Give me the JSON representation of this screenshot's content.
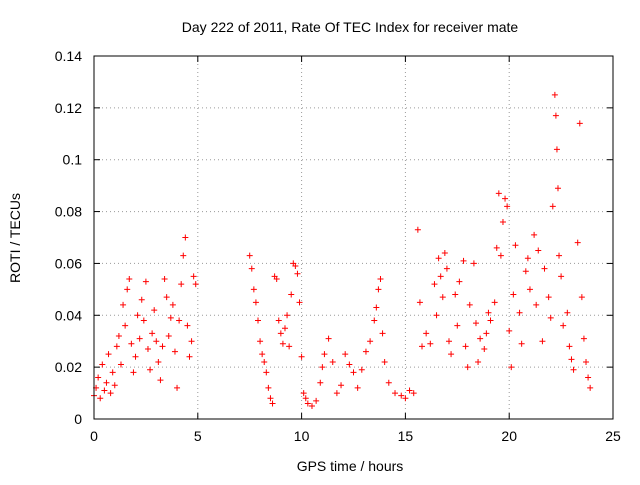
{
  "chart_data": {
    "type": "scatter",
    "title": "Day 222 of 2011, Rate Of TEC Index for receiver mate",
    "xlabel": "GPS time / hours",
    "ylabel": "ROTI / TECUs",
    "xlim": [
      0,
      25
    ],
    "ylim": [
      0,
      0.14
    ],
    "x_ticks": [
      "0",
      "5",
      "10",
      "15",
      "20",
      "25"
    ],
    "y_ticks": [
      "0",
      "0.02",
      "0.04",
      "0.06",
      "0.08",
      "0.1",
      "0.12",
      "0.14"
    ],
    "grid": true,
    "marker": "+",
    "color": "#ff0000",
    "series": [
      {
        "points": [
          [
            0.0,
            0.009
          ],
          [
            0.1,
            0.012
          ],
          [
            0.2,
            0.016
          ],
          [
            0.3,
            0.008
          ],
          [
            0.4,
            0.021
          ],
          [
            0.5,
            0.011
          ],
          [
            0.6,
            0.014
          ],
          [
            0.7,
            0.025
          ],
          [
            0.8,
            0.01
          ],
          [
            0.9,
            0.018
          ],
          [
            1.0,
            0.013
          ],
          [
            1.1,
            0.028
          ],
          [
            1.2,
            0.032
          ],
          [
            1.3,
            0.021
          ],
          [
            1.4,
            0.044
          ],
          [
            1.5,
            0.036
          ],
          [
            1.6,
            0.05
          ],
          [
            1.7,
            0.054
          ],
          [
            1.8,
            0.029
          ],
          [
            1.9,
            0.018
          ],
          [
            2.0,
            0.024
          ],
          [
            2.1,
            0.04
          ],
          [
            2.2,
            0.031
          ],
          [
            2.3,
            0.046
          ],
          [
            2.4,
            0.038
          ],
          [
            2.5,
            0.053
          ],
          [
            2.6,
            0.027
          ],
          [
            2.7,
            0.019
          ],
          [
            2.8,
            0.033
          ],
          [
            2.9,
            0.042
          ],
          [
            3.0,
            0.03
          ],
          [
            3.1,
            0.022
          ],
          [
            3.2,
            0.015
          ],
          [
            3.3,
            0.028
          ],
          [
            3.4,
            0.054
          ],
          [
            3.5,
            0.047
          ],
          [
            3.6,
            0.032
          ],
          [
            3.7,
            0.039
          ],
          [
            3.8,
            0.044
          ],
          [
            3.9,
            0.026
          ],
          [
            4.0,
            0.012
          ],
          [
            4.1,
            0.038
          ],
          [
            4.2,
            0.052
          ],
          [
            4.3,
            0.063
          ],
          [
            4.4,
            0.07
          ],
          [
            4.5,
            0.036
          ],
          [
            4.6,
            0.024
          ],
          [
            4.7,
            0.03
          ],
          [
            4.8,
            0.055
          ],
          [
            4.9,
            0.052
          ],
          [
            7.5,
            0.063
          ],
          [
            7.6,
            0.058
          ],
          [
            7.7,
            0.05
          ],
          [
            7.8,
            0.045
          ],
          [
            7.9,
            0.038
          ],
          [
            8.0,
            0.03
          ],
          [
            8.1,
            0.025
          ],
          [
            8.2,
            0.022
          ],
          [
            8.3,
            0.018
          ],
          [
            8.4,
            0.012
          ],
          [
            8.5,
            0.008
          ],
          [
            8.6,
            0.006
          ],
          [
            8.7,
            0.055
          ],
          [
            8.8,
            0.054
          ],
          [
            8.9,
            0.038
          ],
          [
            9.0,
            0.033
          ],
          [
            9.1,
            0.029
          ],
          [
            9.2,
            0.035
          ],
          [
            9.3,
            0.04
          ],
          [
            9.4,
            0.028
          ],
          [
            9.5,
            0.048
          ],
          [
            9.6,
            0.06
          ],
          [
            9.7,
            0.059
          ],
          [
            9.8,
            0.056
          ],
          [
            9.9,
            0.045
          ],
          [
            10.0,
            0.024
          ],
          [
            10.1,
            0.01
          ],
          [
            10.2,
            0.008
          ],
          [
            10.3,
            0.006
          ],
          [
            10.5,
            0.005
          ],
          [
            10.7,
            0.007
          ],
          [
            10.9,
            0.014
          ],
          [
            11.0,
            0.02
          ],
          [
            11.1,
            0.025
          ],
          [
            11.3,
            0.031
          ],
          [
            11.5,
            0.022
          ],
          [
            11.7,
            0.01
          ],
          [
            11.9,
            0.013
          ],
          [
            12.1,
            0.025
          ],
          [
            12.3,
            0.021
          ],
          [
            12.5,
            0.018
          ],
          [
            12.7,
            0.012
          ],
          [
            12.9,
            0.019
          ],
          [
            13.1,
            0.026
          ],
          [
            13.3,
            0.03
          ],
          [
            13.5,
            0.038
          ],
          [
            13.6,
            0.043
          ],
          [
            13.7,
            0.05
          ],
          [
            13.8,
            0.054
          ],
          [
            13.9,
            0.033
          ],
          [
            14.0,
            0.022
          ],
          [
            14.2,
            0.014
          ],
          [
            14.5,
            0.01
          ],
          [
            14.8,
            0.009
          ],
          [
            15.0,
            0.008
          ],
          [
            15.2,
            0.011
          ],
          [
            15.4,
            0.01
          ],
          [
            15.6,
            0.073
          ],
          [
            15.7,
            0.045
          ],
          [
            15.8,
            0.028
          ],
          [
            16.0,
            0.033
          ],
          [
            16.2,
            0.029
          ],
          [
            16.4,
            0.052
          ],
          [
            16.5,
            0.04
          ],
          [
            16.6,
            0.062
          ],
          [
            16.7,
            0.055
          ],
          [
            16.8,
            0.047
          ],
          [
            16.9,
            0.064
          ],
          [
            17.0,
            0.058
          ],
          [
            17.1,
            0.03
          ],
          [
            17.2,
            0.025
          ],
          [
            17.4,
            0.048
          ],
          [
            17.5,
            0.036
          ],
          [
            17.6,
            0.053
          ],
          [
            17.8,
            0.061
          ],
          [
            17.9,
            0.028
          ],
          [
            18.0,
            0.02
          ],
          [
            18.1,
            0.044
          ],
          [
            18.3,
            0.06
          ],
          [
            18.4,
            0.037
          ],
          [
            18.5,
            0.022
          ],
          [
            18.6,
            0.031
          ],
          [
            18.8,
            0.027
          ],
          [
            18.9,
            0.033
          ],
          [
            19.0,
            0.041
          ],
          [
            19.1,
            0.038
          ],
          [
            19.3,
            0.045
          ],
          [
            19.4,
            0.066
          ],
          [
            19.5,
            0.087
          ],
          [
            19.6,
            0.063
          ],
          [
            19.7,
            0.076
          ],
          [
            19.8,
            0.085
          ],
          [
            19.9,
            0.082
          ],
          [
            20.0,
            0.034
          ],
          [
            20.1,
            0.02
          ],
          [
            20.2,
            0.048
          ],
          [
            20.3,
            0.067
          ],
          [
            20.5,
            0.041
          ],
          [
            20.6,
            0.029
          ],
          [
            20.8,
            0.057
          ],
          [
            20.9,
            0.062
          ],
          [
            21.0,
            0.05
          ],
          [
            21.2,
            0.071
          ],
          [
            21.3,
            0.044
          ],
          [
            21.4,
            0.065
          ],
          [
            21.6,
            0.03
          ],
          [
            21.7,
            0.058
          ],
          [
            21.9,
            0.047
          ],
          [
            22.0,
            0.039
          ],
          [
            22.1,
            0.082
          ],
          [
            22.2,
            0.125
          ],
          [
            22.25,
            0.117
          ],
          [
            22.3,
            0.104
          ],
          [
            22.35,
            0.089
          ],
          [
            22.4,
            0.063
          ],
          [
            22.5,
            0.055
          ],
          [
            22.6,
            0.036
          ],
          [
            22.8,
            0.041
          ],
          [
            22.9,
            0.028
          ],
          [
            23.0,
            0.023
          ],
          [
            23.1,
            0.019
          ],
          [
            23.3,
            0.068
          ],
          [
            23.4,
            0.114
          ],
          [
            23.5,
            0.047
          ],
          [
            23.6,
            0.031
          ],
          [
            23.7,
            0.022
          ],
          [
            23.8,
            0.016
          ],
          [
            23.9,
            0.012
          ]
        ]
      }
    ]
  }
}
